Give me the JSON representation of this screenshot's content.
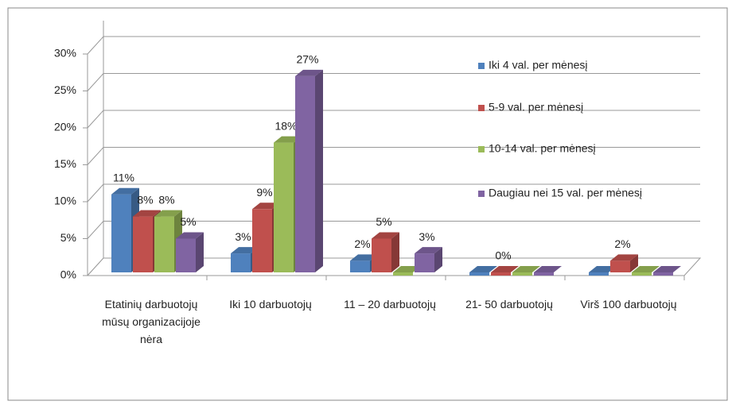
{
  "chart_data": {
    "type": "bar3d",
    "categories": [
      "Etatinių darbuotojų mūsų organizacijoje nėra",
      "Iki 10 darbuotojų",
      "11 – 20 darbuotojų",
      "21- 50 darbuotojų",
      "Virš 100 darbuotojų"
    ],
    "series": [
      {
        "name": "Iki 4 val. per mėnesį",
        "color": "#4f81bd",
        "values": [
          11,
          3,
          2,
          0,
          0
        ],
        "value_labels": [
          "11%",
          "3%",
          "2%",
          null,
          null
        ]
      },
      {
        "name": "5-9 val. per mėnesį",
        "color": "#c0504d",
        "values": [
          8,
          9,
          5,
          0,
          2
        ],
        "value_labels": [
          "8%",
          "9%",
          "5%",
          "0%",
          "2%"
        ]
      },
      {
        "name": "10-14 val. per mėnesį",
        "color": "#9bbb59",
        "values": [
          8,
          18,
          0,
          0,
          0
        ],
        "value_labels": [
          "8%",
          "18%",
          null,
          null,
          null
        ]
      },
      {
        "name": "Daugiau nei 15 val. per mėnesį",
        "color": "#8064a2",
        "values": [
          5,
          27,
          3,
          0,
          0
        ],
        "value_labels": [
          "5%",
          "27%",
          "3%",
          null,
          null
        ]
      }
    ],
    "ylim": [
      0,
      30
    ],
    "yticks": [
      {
        "value": 0,
        "label": "0%"
      },
      {
        "value": 5,
        "label": "5%"
      },
      {
        "value": 10,
        "label": "10%"
      },
      {
        "value": 15,
        "label": "15%"
      },
      {
        "value": 20,
        "label": "20%"
      },
      {
        "value": 25,
        "label": "25%"
      },
      {
        "value": 30,
        "label": "30%"
      }
    ],
    "grid": true,
    "legend": "right"
  }
}
